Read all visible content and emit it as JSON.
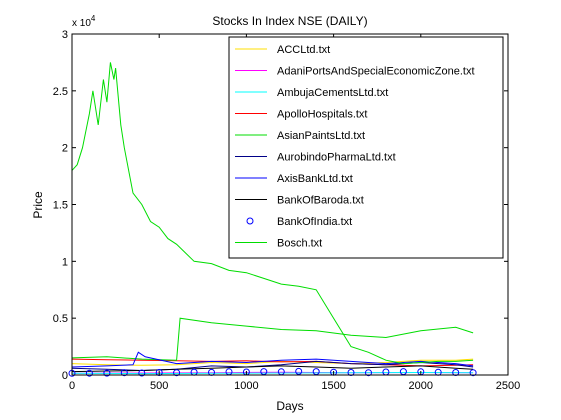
{
  "chart_data": {
    "type": "line",
    "title": "Stocks In Index NSE (DAILY)",
    "xlabel": "Days",
    "ylabel": "Price",
    "y_multiplier_label": {
      "base": "x 10",
      "exponent": "4"
    },
    "xlim": [
      0,
      2500
    ],
    "ylim": [
      0,
      30000
    ],
    "x_ticks": [
      0,
      500,
      1000,
      1500,
      2000,
      2500
    ],
    "x_tick_labels": [
      "0",
      "500",
      "1000",
      "1500",
      "2000",
      "2500"
    ],
    "y_ticks": [
      0,
      5000,
      10000,
      15000,
      20000,
      25000,
      30000
    ],
    "y_tick_labels": [
      "0",
      "0.5",
      "1",
      "1.5",
      "2",
      "2.5",
      "3"
    ],
    "grid": false,
    "legend_position": "top-right",
    "series": [
      {
        "name": "ACCLtd.txt",
        "color": "#ffdf00",
        "style": "line",
        "x": [
          0,
          200,
          400,
          600,
          800,
          1000,
          1200,
          1400,
          1600,
          1800,
          2000,
          2200,
          2300
        ],
        "y": [
          1000,
          900,
          850,
          900,
          1100,
          1000,
          1200,
          1100,
          1000,
          1100,
          1300,
          1300,
          1400
        ]
      },
      {
        "name": "AdaniPortsAndSpecialEconomicZone.txt",
        "color": "#ff00ff",
        "style": "line",
        "x": [
          0,
          400,
          800,
          1200,
          1600,
          2000,
          2300
        ],
        "y": [
          150,
          180,
          200,
          250,
          200,
          220,
          200
        ]
      },
      {
        "name": "AmbujaCementsLtd.txt",
        "color": "#00ffff",
        "style": "line",
        "x": [
          0,
          400,
          800,
          1200,
          1600,
          2000,
          2300
        ],
        "y": [
          150,
          120,
          160,
          180,
          200,
          220,
          200
        ]
      },
      {
        "name": "ApolloHospitals.txt",
        "color": "#ff0000",
        "style": "line",
        "x": [
          0,
          200,
          400,
          600,
          800,
          1000,
          1200,
          1400,
          1600,
          1800,
          2000,
          2200,
          2300
        ],
        "y": [
          1400,
          1350,
          1300,
          1250,
          1200,
          1250,
          1150,
          1200,
          1000,
          900,
          800,
          850,
          900
        ]
      },
      {
        "name": "AsianPaintsLtd.txt",
        "color": "#00dd00",
        "style": "line",
        "x": [
          0,
          200,
          400,
          600,
          620,
          800,
          1000,
          1200,
          1400,
          1600,
          1800,
          2000,
          2200,
          2300
        ],
        "y": [
          1500,
          1600,
          1400,
          1300,
          5000,
          4600,
          4300,
          4000,
          3900,
          3500,
          3300,
          3900,
          4200,
          3700
        ]
      },
      {
        "name": "AurobindoPharmaLtd.txt",
        "color": "#000088",
        "style": "line",
        "x": [
          0,
          200,
          400,
          600,
          800,
          1000,
          1200,
          1400,
          1600,
          1800,
          2000,
          2200,
          2300
        ],
        "y": [
          600,
          500,
          400,
          500,
          800,
          700,
          900,
          1200,
          1000,
          900,
          1100,
          900,
          700
        ]
      },
      {
        "name": "AxisBankLtd.txt",
        "color": "#0000ff",
        "style": "line",
        "x": [
          0,
          200,
          350,
          380,
          420,
          600,
          800,
          1000,
          1200,
          1400,
          1600,
          1800,
          2000,
          2200,
          2300
        ],
        "y": [
          700,
          800,
          900,
          2000,
          1600,
          1000,
          1200,
          1100,
          1300,
          1400,
          1200,
          1000,
          1200,
          1000,
          800
        ]
      },
      {
        "name": "BankOfBaroda.txt",
        "color": "#000000",
        "style": "line",
        "x": [
          0,
          200,
          400,
          600,
          800,
          1000,
          1200,
          1400,
          1600,
          1800,
          2000,
          2200,
          2300
        ],
        "y": [
          300,
          350,
          400,
          500,
          600,
          700,
          800,
          700,
          600,
          700,
          800,
          600,
          500
        ]
      },
      {
        "name": "BankOfIndia.txt",
        "color": "#0000ff",
        "style": "marker",
        "x": [
          0,
          100,
          200,
          300,
          400,
          500,
          600,
          700,
          800,
          900,
          1000,
          1100,
          1200,
          1300,
          1400,
          1500,
          1600,
          1700,
          1800,
          1900,
          2000,
          2100,
          2200,
          2300
        ],
        "y": [
          150,
          160,
          170,
          200,
          180,
          220,
          200,
          250,
          230,
          280,
          260,
          300,
          280,
          320,
          300,
          250,
          220,
          200,
          260,
          300,
          280,
          240,
          220,
          200
        ]
      },
      {
        "name": "Bosch.txt",
        "color": "#00dd00",
        "style": "line",
        "x": [
          0,
          30,
          60,
          100,
          120,
          150,
          180,
          200,
          220,
          240,
          250,
          280,
          300,
          350,
          400,
          450,
          500,
          550,
          600,
          700,
          800,
          900,
          1000,
          1100,
          1200,
          1300,
          1400,
          1500,
          1600,
          1700,
          1800,
          1900,
          2000,
          2100,
          2200,
          2300
        ],
        "y": [
          18000,
          18500,
          20000,
          23000,
          25000,
          22000,
          26000,
          24000,
          27500,
          26000,
          27000,
          22000,
          20000,
          16000,
          15000,
          13500,
          13000,
          12000,
          11500,
          10000,
          9800,
          9200,
          9000,
          8500,
          8000,
          7800,
          7500,
          5000,
          2500,
          2000,
          1300,
          1000,
          1100,
          1200,
          1200,
          1300
        ]
      }
    ]
  }
}
